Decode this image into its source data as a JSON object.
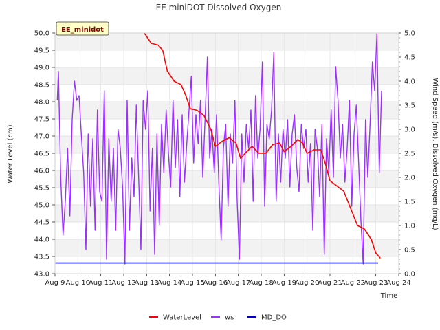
{
  "chart_data": {
    "type": "line",
    "title": "EE miniDOT Dissolved Oxygen",
    "badge": "EE_minidot",
    "xlabel": "Time",
    "ylabel_left": "Water Level (cm)",
    "ylabel_right": "Wind Speed (m/s), Dissolved Oxygen (mg/L)",
    "x_ticks": [
      "Aug 9",
      "Aug 10",
      "Aug 11",
      "Aug 12",
      "Aug 13",
      "Aug 14",
      "Aug 15",
      "Aug 16",
      "Aug 17",
      "Aug 18",
      "Aug 19",
      "Aug 20",
      "Aug 21",
      "Aug 22",
      "Aug 23",
      "Aug 24"
    ],
    "xlim_days": [
      9,
      24
    ],
    "ylim_left": [
      43.0,
      50.0
    ],
    "ylim_right": [
      0.0,
      5.0
    ],
    "y_left_ticks": [
      "43.0",
      "43.5",
      "44.0",
      "44.5",
      "45.0",
      "45.5",
      "46.0",
      "46.5",
      "47.0",
      "47.5",
      "48.0",
      "48.5",
      "49.0",
      "49.5",
      "50.0"
    ],
    "y_right_ticks": [
      "0.0",
      "0.5",
      "1.0",
      "1.5",
      "2.0",
      "2.5",
      "3.0",
      "3.5",
      "4.0",
      "4.5",
      "5.0"
    ],
    "grid": true,
    "legend_position": "bottom-center",
    "series": [
      {
        "name": "WaterLevel",
        "axis": "left",
        "color": "#ff0000",
        "x": [
          12.9,
          13.2,
          13.5,
          13.7,
          13.9,
          14.2,
          14.5,
          14.7,
          14.9,
          15.2,
          15.5,
          15.8,
          16.0,
          16.3,
          16.6,
          16.9,
          17.1,
          17.3,
          17.6,
          17.9,
          18.2,
          18.5,
          18.8,
          19.0,
          19.3,
          19.6,
          19.8,
          20.0,
          20.3,
          20.6,
          20.8,
          21.0,
          21.3,
          21.6,
          21.9,
          22.2,
          22.5,
          22.8,
          23.0,
          23.2
        ],
        "y": [
          50.0,
          49.7,
          49.65,
          49.5,
          48.9,
          48.6,
          48.5,
          48.2,
          47.8,
          47.75,
          47.6,
          47.2,
          46.7,
          46.85,
          46.95,
          46.8,
          46.35,
          46.5,
          46.7,
          46.5,
          46.5,
          46.75,
          46.8,
          46.55,
          46.7,
          46.9,
          46.8,
          46.5,
          46.6,
          46.6,
          46.2,
          45.7,
          45.55,
          45.4,
          44.9,
          44.4,
          44.3,
          44.0,
          43.6,
          43.45
        ]
      },
      {
        "name": "ws",
        "axis": "right",
        "color": "#9b30ff",
        "x": [
          9.1,
          9.15,
          9.25,
          9.35,
          9.45,
          9.55,
          9.65,
          9.75,
          9.85,
          9.95,
          10.05,
          10.15,
          10.25,
          10.35,
          10.45,
          10.55,
          10.65,
          10.75,
          10.85,
          10.95,
          11.05,
          11.15,
          11.25,
          11.35,
          11.45,
          11.55,
          11.65,
          11.75,
          11.85,
          11.95,
          12.05,
          12.15,
          12.25,
          12.35,
          12.45,
          12.55,
          12.65,
          12.75,
          12.85,
          12.95,
          13.05,
          13.15,
          13.25,
          13.35,
          13.45,
          13.55,
          13.65,
          13.75,
          13.85,
          13.95,
          14.05,
          14.15,
          14.25,
          14.35,
          14.45,
          14.55,
          14.65,
          14.75,
          14.85,
          14.95,
          15.05,
          15.15,
          15.25,
          15.35,
          15.45,
          15.55,
          15.65,
          15.75,
          15.85,
          15.95,
          16.05,
          16.15,
          16.25,
          16.35,
          16.45,
          16.55,
          16.65,
          16.75,
          16.85,
          16.95,
          17.05,
          17.15,
          17.25,
          17.35,
          17.45,
          17.55,
          17.65,
          17.75,
          17.85,
          17.95,
          18.05,
          18.15,
          18.25,
          18.35,
          18.45,
          18.55,
          18.65,
          18.75,
          18.85,
          18.95,
          19.05,
          19.15,
          19.25,
          19.35,
          19.45,
          19.55,
          19.65,
          19.75,
          19.85,
          19.95,
          20.05,
          20.15,
          20.25,
          20.35,
          20.45,
          20.55,
          20.65,
          20.75,
          20.85,
          20.95,
          21.05,
          21.15,
          21.25,
          21.35,
          21.45,
          21.55,
          21.65,
          21.75,
          21.85,
          21.95,
          22.05,
          22.15,
          22.25,
          22.35,
          22.45,
          22.55,
          22.65,
          22.75,
          22.85,
          22.95,
          23.05,
          23.15,
          23.25
        ],
        "y": [
          3.6,
          4.2,
          2.0,
          0.8,
          1.5,
          2.6,
          1.2,
          3.2,
          4.0,
          3.6,
          3.7,
          2.9,
          2.1,
          0.5,
          2.9,
          1.4,
          2.8,
          0.9,
          3.4,
          1.7,
          1.5,
          3.8,
          0.3,
          2.8,
          1.5,
          2.6,
          0.9,
          3.0,
          2.6,
          1.8,
          0.2,
          3.6,
          0.9,
          2.4,
          1.6,
          3.5,
          2.0,
          0.5,
          3.6,
          3.0,
          3.8,
          1.3,
          2.6,
          0.4,
          2.9,
          1.0,
          3.1,
          2.1,
          3.4,
          2.5,
          1.8,
          3.6,
          2.2,
          3.2,
          1.6,
          3.3,
          1.9,
          2.7,
          3.4,
          4.1,
          2.3,
          3.3,
          2.7,
          3.6,
          2.0,
          3.2,
          4.5,
          2.4,
          3.0,
          2.1,
          3.3,
          1.9,
          0.7,
          2.6,
          3.1,
          1.4,
          2.9,
          2.3,
          3.6,
          1.5,
          0.3,
          2.9,
          1.9,
          3.1,
          2.6,
          3.4,
          1.5,
          3.7,
          2.4,
          3.0,
          4.4,
          1.4,
          3.1,
          2.8,
          3.4,
          4.6,
          1.5,
          2.9,
          1.9,
          3.0,
          2.4,
          3.2,
          1.8,
          2.9,
          3.3,
          2.2,
          1.7,
          3.1,
          2.6,
          3.0,
          1.9,
          2.7,
          0.9,
          3.0,
          2.6,
          1.6,
          3.1,
          0.4,
          2.8,
          2.1,
          3.4,
          2.0,
          4.3,
          3.6,
          2.4,
          3.1,
          1.9,
          2.6,
          3.6,
          1.4,
          2.9,
          3.5,
          2.3,
          1.1,
          0.2,
          3.2,
          2.0,
          3.1,
          4.4,
          3.8,
          5.0,
          2.1,
          3.8
        ]
      },
      {
        "name": "MD_DO",
        "axis": "right",
        "color": "#0000cd",
        "x": [
          9.0,
          23.1
        ],
        "y": [
          0.22,
          0.22
        ]
      }
    ]
  }
}
